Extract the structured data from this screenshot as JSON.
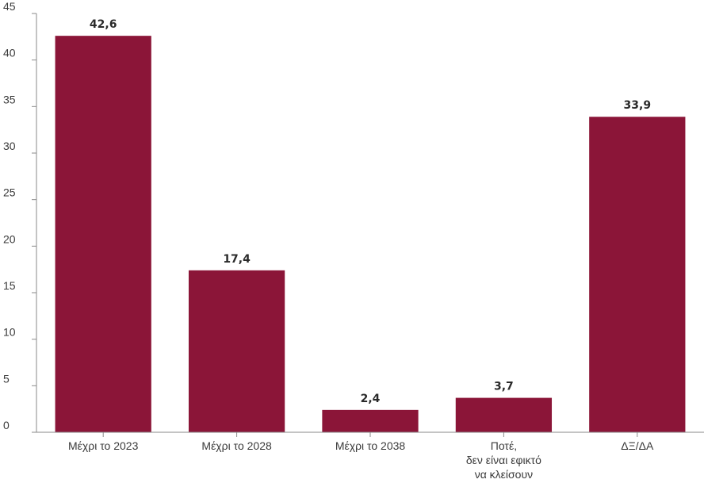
{
  "chart_data": {
    "type": "bar",
    "categories": [
      [
        "Μέχρι το 2023"
      ],
      [
        "Μέχρι το 2028"
      ],
      [
        "Μέχρι το 2038"
      ],
      [
        "Ποτέ,",
        "δεν είναι εφικτό",
        "να κλείσουν"
      ],
      [
        "ΔΞ/ΔΑ"
      ]
    ],
    "values": [
      42.6,
      17.4,
      2.4,
      3.7,
      33.9
    ],
    "value_labels": [
      "42,6",
      "17,4",
      "2,4",
      "3,7",
      "33,9"
    ],
    "y_ticks": [
      0,
      5,
      10,
      15,
      20,
      25,
      30,
      35,
      40,
      45
    ],
    "ylim": [
      0,
      45
    ],
    "bar_color": "#8b1538",
    "grid": false,
    "legend": "none"
  }
}
